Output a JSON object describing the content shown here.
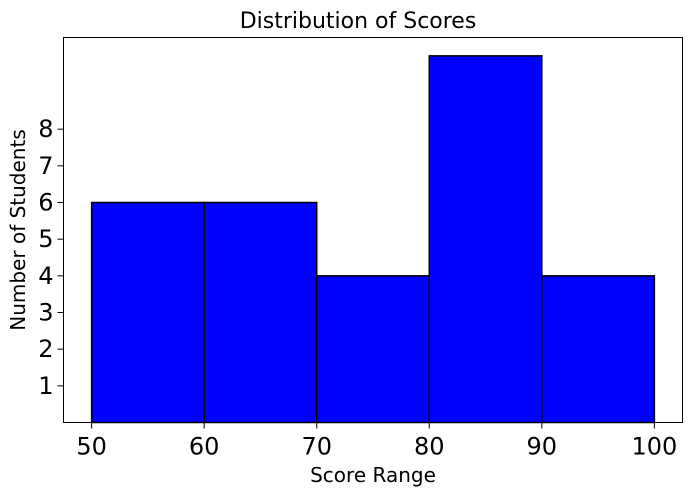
{
  "chart_data": {
    "type": "bar",
    "title": "Distribution of Scores",
    "xlabel": "Score Range",
    "ylabel": "Number of Students",
    "bins": [
      {
        "start": 50,
        "end": 60,
        "value": 6
      },
      {
        "start": 60,
        "end": 70,
        "value": 6
      },
      {
        "start": 70,
        "end": 80,
        "value": 4
      },
      {
        "start": 80,
        "end": 90,
        "value": 10
      },
      {
        "start": 90,
        "end": 100,
        "value": 4
      }
    ],
    "xlim": [
      47.5,
      102.5
    ],
    "ylim": [
      0,
      10.5
    ],
    "xticks": [
      "50",
      "60",
      "70",
      "80",
      "90",
      "100"
    ],
    "yticks": [
      "1",
      "2",
      "3",
      "4",
      "5",
      "6",
      "7",
      "8"
    ],
    "grid": false,
    "colors": {
      "bar_fill": "#0000ff",
      "bar_edge": "#000000",
      "axis": "#000000",
      "background": "#ffffff"
    }
  }
}
